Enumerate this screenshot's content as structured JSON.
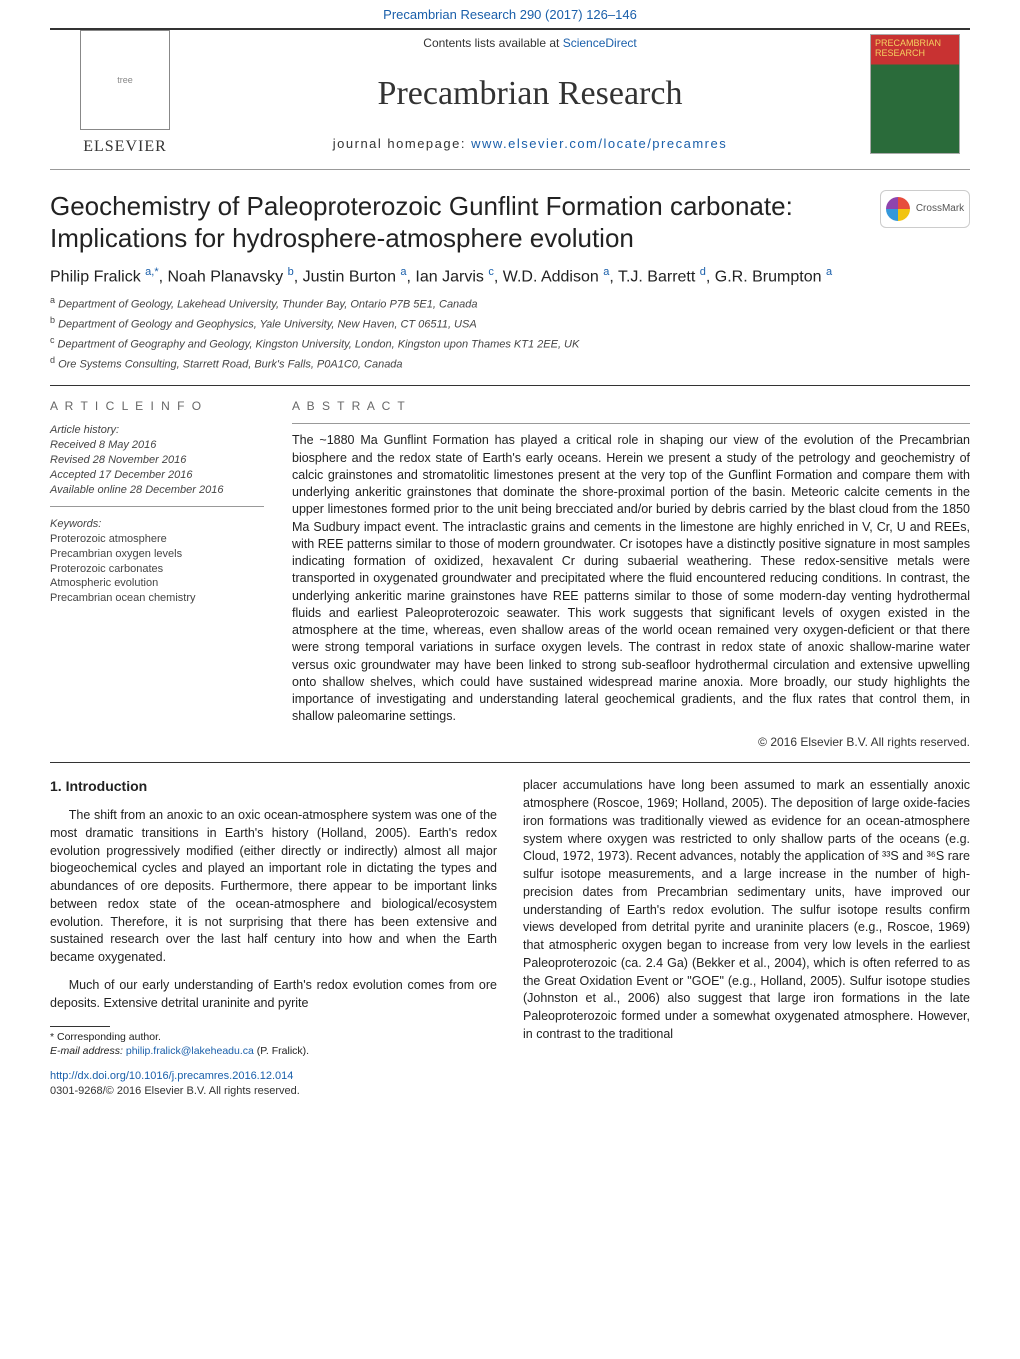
{
  "header": {
    "citation": "Precambrian Research 290 (2017) 126–146",
    "contents_prefix": "Contents lists available at ",
    "contents_link": "ScienceDirect",
    "journal_title": "Precambrian Research",
    "homepage_prefix": "journal homepage: ",
    "homepage_link": "www.elsevier.com/locate/precamres",
    "publisher": "ELSEVIER",
    "cover_title": "PRECAMBRIAN RESEARCH",
    "crossmark": "CrossMark"
  },
  "paper": {
    "title_line1": "Geochemistry of Paleoproterozoic Gunflint Formation carbonate:",
    "title_line2": "Implications for hydrosphere-atmosphere evolution",
    "authors_html": "Philip Fralick <sup>a,</sup><sup class='star'>*</sup>, Noah Planavsky <sup>b</sup>, Justin Burton <sup>a</sup>, Ian Jarvis <sup>c</sup>, W.D. Addison <sup>a</sup>, T.J. Barrett <sup>d</sup>, G.R. Brumpton <sup>a</sup>",
    "affiliations": [
      {
        "sup": "a",
        "text": "Department of Geology, Lakehead University, Thunder Bay, Ontario P7B 5E1, Canada"
      },
      {
        "sup": "b",
        "text": "Department of Geology and Geophysics, Yale University, New Haven, CT 06511, USA"
      },
      {
        "sup": "c",
        "text": "Department of Geography and Geology, Kingston University, London, Kingston upon Thames KT1 2EE, UK"
      },
      {
        "sup": "d",
        "text": "Ore Systems Consulting, Starrett Road, Burk's Falls, P0A1C0, Canada"
      }
    ]
  },
  "article_info": {
    "heading": "A R T I C L E   I N F O",
    "history_label": "Article history:",
    "history": [
      "Received 8 May 2016",
      "Revised 28 November 2016",
      "Accepted 17 December 2016",
      "Available online 28 December 2016"
    ],
    "keywords_label": "Keywords:",
    "keywords": [
      "Proterozoic atmosphere",
      "Precambrian oxygen levels",
      "Proterozoic carbonates",
      "Atmospheric evolution",
      "Precambrian ocean chemistry"
    ]
  },
  "abstract": {
    "heading": "A B S T R A C T",
    "text": "The ~1880 Ma Gunflint Formation has played a critical role in shaping our view of the evolution of the Precambrian biosphere and the redox state of Earth's early oceans. Herein we present a study of the petrology and geochemistry of calcic grainstones and stromatolitic limestones present at the very top of the Gunflint Formation and compare them with underlying ankeritic grainstones that dominate the shore-proximal portion of the basin. Meteoric calcite cements in the upper limestones formed prior to the unit being brecciated and/or buried by debris carried by the blast cloud from the 1850 Ma Sudbury impact event. The intraclastic grains and cements in the limestone are highly enriched in V, Cr, U and REEs, with REE patterns similar to those of modern groundwater. Cr isotopes have a distinctly positive signature in most samples indicating formation of oxidized, hexavalent Cr during subaerial weathering. These redox-sensitive metals were transported in oxygenated groundwater and precipitated where the fluid encountered reducing conditions. In contrast, the underlying ankeritic marine grainstones have REE patterns similar to those of some modern-day venting hydrothermal fluids and earliest Paleoproterozoic seawater. This work suggests that significant levels of oxygen existed in the atmosphere at the time, whereas, even shallow areas of the world ocean remained very oxygen-deficient or that there were strong temporal variations in surface oxygen levels. The contrast in redox state of anoxic shallow-marine water versus oxic groundwater may have been linked to strong sub-seafloor hydrothermal circulation and extensive upwelling onto shallow shelves, which could have sustained widespread marine anoxia. More broadly, our study highlights the importance of investigating and understanding lateral geochemical gradients, and the flux rates that control them, in shallow paleomarine settings.",
    "copyright": "© 2016 Elsevier B.V. All rights reserved."
  },
  "body": {
    "section_heading": "1. Introduction",
    "left_paragraphs": [
      "The shift from an anoxic to an oxic ocean-atmosphere system was one of the most dramatic transitions in Earth's history (Holland, 2005). Earth's redox evolution progressively modified (either directly or indirectly) almost all major biogeochemical cycles and played an important role in dictating the types and abundances of ore deposits. Furthermore, there appear to be important links between redox state of the ocean-atmosphere and biological/ecosystem evolution. Therefore, it is not surprising that there has been extensive and sustained research over the last half century into how and when the Earth became oxygenated.",
      "Much of our early understanding of Earth's redox evolution comes from ore deposits. Extensive detrital uraninite and pyrite"
    ],
    "right_paragraphs": [
      "placer accumulations have long been assumed to mark an essentially anoxic atmosphere (Roscoe, 1969; Holland, 2005). The deposition of large oxide-facies iron formations was traditionally viewed as evidence for an ocean-atmosphere system where oxygen was restricted to only shallow parts of the oceans (e.g. Cloud, 1972, 1973). Recent advances, notably the application of ³³S and ³⁶S rare sulfur isotope measurements, and a large increase in the number of high-precision dates from Precambrian sedimentary units, have improved our understanding of Earth's redox evolution. The sulfur isotope results confirm views developed from detrital pyrite and uraninite placers (e.g., Roscoe, 1969) that atmospheric oxygen began to increase from very low levels in the earliest Paleoproterozoic (ca. 2.4 Ga) (Bekker et al., 2004), which is often referred to as the Great Oxidation Event or \"GOE\" (e.g., Holland, 2005). Sulfur isotope studies (Johnston et al., 2006) also suggest that large iron formations in the late Paleoproterozoic formed under a somewhat oxygenated atmosphere. However, in contrast to the traditional"
    ]
  },
  "footnote": {
    "corr": "* Corresponding author.",
    "email_label": "E-mail address: ",
    "email": "philip.fralick@lakeheadu.ca",
    "email_suffix": " (P. Fralick)."
  },
  "doi": {
    "url": "http://dx.doi.org/10.1016/j.precamres.2016.12.014",
    "issn": "0301-9268/© 2016 Elsevier B.V. All rights reserved."
  },
  "colors": {
    "link": "#1a5faa",
    "text": "#222222",
    "rule": "#333333",
    "cover_red": "#c83232",
    "cover_green": "#2a6b3a",
    "cover_yellow": "#f5d060"
  },
  "typography": {
    "journal_title_pt": 34,
    "paper_title_pt": 26,
    "authors_pt": 16,
    "body_pt": 12.5,
    "affil_pt": 11,
    "footnote_pt": 10.5
  }
}
